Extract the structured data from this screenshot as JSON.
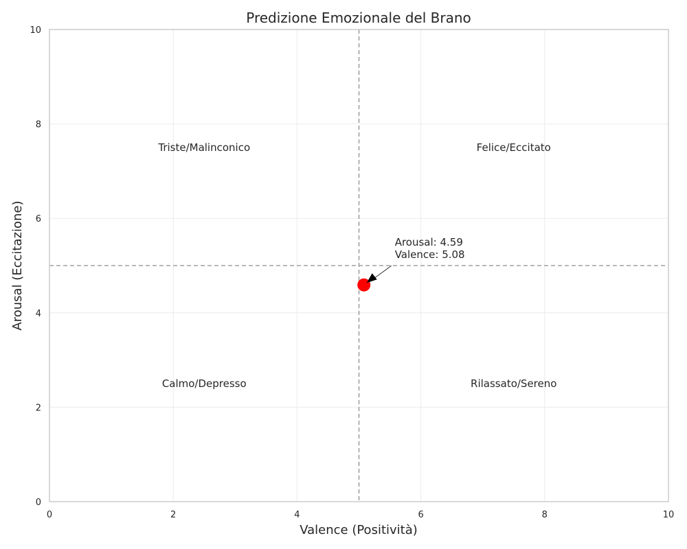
{
  "chart_data": {
    "type": "scatter",
    "title": "Predizione Emozionale del Brano",
    "xlabel": "Valence (Positività)",
    "ylabel": "Arousal (Eccitazione)",
    "xlim": [
      0,
      10
    ],
    "ylim": [
      0,
      10
    ],
    "xticks": [
      0,
      2,
      4,
      6,
      8,
      10
    ],
    "yticks": [
      0,
      2,
      4,
      6,
      8,
      10
    ],
    "grid": true,
    "reference_lines": {
      "vertical_x": 5,
      "horizontal_y": 5,
      "color": "#a0a0a0",
      "style": "dashed"
    },
    "points": [
      {
        "x": 5.08,
        "y": 4.59,
        "color": "#ff0000",
        "annotation": [
          "Arousal: 4.59",
          "Valence: 5.08"
        ]
      }
    ],
    "quadrant_labels": [
      {
        "text": "Triste/Malinconico",
        "x": 2.5,
        "y": 7.5
      },
      {
        "text": "Felice/Eccitato",
        "x": 7.5,
        "y": 7.5
      },
      {
        "text": "Calmo/Depresso",
        "x": 2.5,
        "y": 2.5
      },
      {
        "text": "Rilassato/Sereno",
        "x": 7.5,
        "y": 2.5
      }
    ],
    "colors": {
      "grid": "#ebebeb",
      "spine": "#cccccc",
      "text": "#262626"
    }
  }
}
